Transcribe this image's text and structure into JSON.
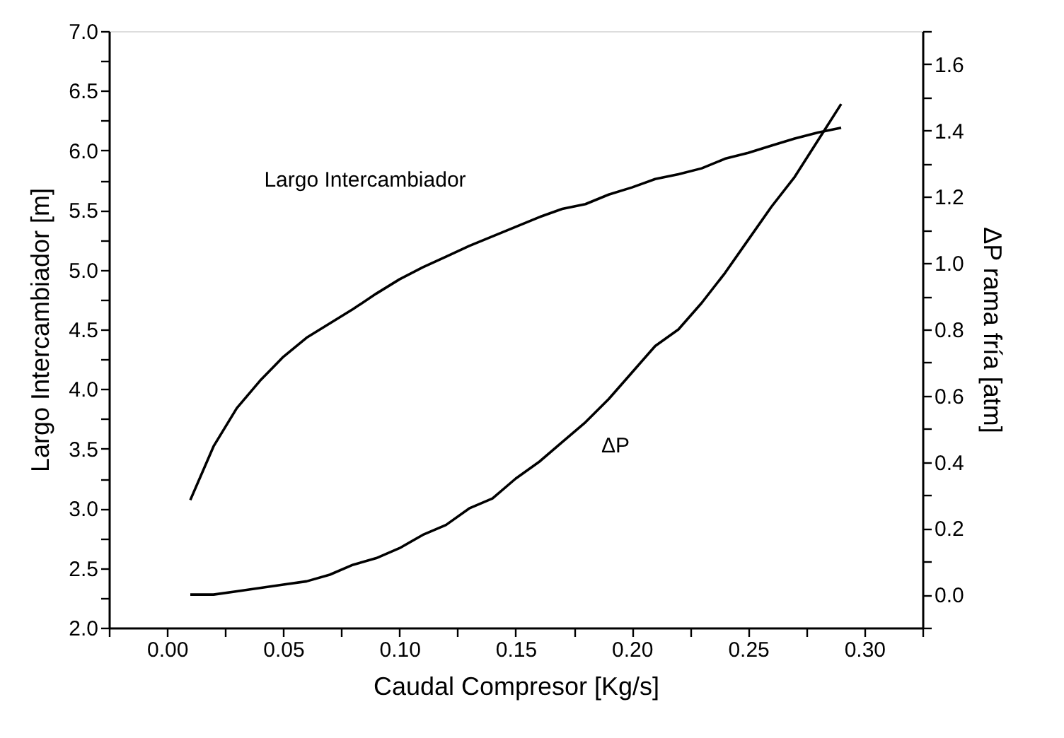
{
  "chart_data": {
    "type": "line",
    "xlabel": "Caudal Compresor [Kg/s]",
    "ylabel": "Largo Intercambiador [m]",
    "y2label": "ΔP rama fría [atm]",
    "xlim": [
      -0.025,
      0.325
    ],
    "ylim": [
      2.0,
      7.0
    ],
    "y2lim": [
      -0.1,
      1.7
    ],
    "xticks": [
      {
        "value": -0.025,
        "label": null
      },
      {
        "value": 0.0,
        "label": "0.00"
      },
      {
        "value": 0.025,
        "label": null
      },
      {
        "value": 0.05,
        "label": "0.05"
      },
      {
        "value": 0.075,
        "label": null
      },
      {
        "value": 0.1,
        "label": "0.10"
      },
      {
        "value": 0.125,
        "label": null
      },
      {
        "value": 0.15,
        "label": "0.15"
      },
      {
        "value": 0.175,
        "label": null
      },
      {
        "value": 0.2,
        "label": "0.20"
      },
      {
        "value": 0.225,
        "label": null
      },
      {
        "value": 0.25,
        "label": "0.25"
      },
      {
        "value": 0.275,
        "label": null
      },
      {
        "value": 0.3,
        "label": "0.30"
      },
      {
        "value": 0.325,
        "label": null
      }
    ],
    "yticks": [
      {
        "value": 2.0,
        "label": "2.0"
      },
      {
        "value": 2.25,
        "label": null
      },
      {
        "value": 2.5,
        "label": "2.5"
      },
      {
        "value": 2.75,
        "label": null
      },
      {
        "value": 3.0,
        "label": "3.0"
      },
      {
        "value": 3.25,
        "label": null
      },
      {
        "value": 3.5,
        "label": "3.5"
      },
      {
        "value": 3.75,
        "label": null
      },
      {
        "value": 4.0,
        "label": "4.0"
      },
      {
        "value": 4.25,
        "label": null
      },
      {
        "value": 4.5,
        "label": "4.5"
      },
      {
        "value": 4.75,
        "label": null
      },
      {
        "value": 5.0,
        "label": "5.0"
      },
      {
        "value": 5.25,
        "label": null
      },
      {
        "value": 5.5,
        "label": "5.5"
      },
      {
        "value": 5.75,
        "label": null
      },
      {
        "value": 6.0,
        "label": "6.0"
      },
      {
        "value": 6.25,
        "label": null
      },
      {
        "value": 6.5,
        "label": "6.5"
      },
      {
        "value": 6.75,
        "label": null
      },
      {
        "value": 7.0,
        "label": "7.0"
      }
    ],
    "y2ticks": [
      {
        "value": -0.1,
        "label": null
      },
      {
        "value": 0.0,
        "label": "0.0"
      },
      {
        "value": 0.1,
        "label": null
      },
      {
        "value": 0.2,
        "label": "0.2"
      },
      {
        "value": 0.3,
        "label": null
      },
      {
        "value": 0.4,
        "label": "0.4"
      },
      {
        "value": 0.5,
        "label": null
      },
      {
        "value": 0.6,
        "label": "0.6"
      },
      {
        "value": 0.7,
        "label": null
      },
      {
        "value": 0.8,
        "label": "0.8"
      },
      {
        "value": 0.9,
        "label": null
      },
      {
        "value": 1.0,
        "label": "1.0"
      },
      {
        "value": 1.1,
        "label": null
      },
      {
        "value": 1.2,
        "label": "1.2"
      },
      {
        "value": 1.3,
        "label": null
      },
      {
        "value": 1.4,
        "label": "1.4"
      },
      {
        "value": 1.5,
        "label": null
      },
      {
        "value": 1.6,
        "label": "1.6"
      },
      {
        "value": 1.7,
        "label": null
      }
    ],
    "x": [
      0.01,
      0.02,
      0.03,
      0.04,
      0.05,
      0.06,
      0.07,
      0.08,
      0.09,
      0.1,
      0.11,
      0.12,
      0.13,
      0.14,
      0.15,
      0.16,
      0.17,
      0.18,
      0.19,
      0.2,
      0.21,
      0.22,
      0.23,
      0.24,
      0.25,
      0.26,
      0.27,
      0.28,
      0.29
    ],
    "series": [
      {
        "color": "#000000",
        "values": [
          3.07,
          3.52,
          3.84,
          4.07,
          4.27,
          4.43,
          4.55,
          4.67,
          4.8,
          4.92,
          5.02,
          5.11,
          5.2,
          5.28,
          5.36,
          5.44,
          5.51,
          5.55,
          5.63,
          5.69,
          5.76,
          5.8,
          5.85,
          5.93,
          5.98,
          6.04,
          6.1,
          6.15,
          6.19
        ]
      },
      {
        "color": "#000000",
        "axis": "y2",
        "values": [
          0.0,
          0.0,
          0.01,
          0.02,
          0.03,
          0.04,
          0.06,
          0.09,
          0.11,
          0.14,
          0.18,
          0.21,
          0.26,
          0.29,
          0.35,
          0.4,
          0.46,
          0.52,
          0.59,
          0.67,
          0.75,
          0.8,
          0.88,
          0.97,
          1.07,
          1.17,
          1.26,
          1.37,
          1.48
        ]
      }
    ],
    "annotations": [
      "Largo Intercambiador",
      "ΔP"
    ],
    "grid": false,
    "legend": false,
    "marker": "none",
    "line_style": "solid"
  }
}
